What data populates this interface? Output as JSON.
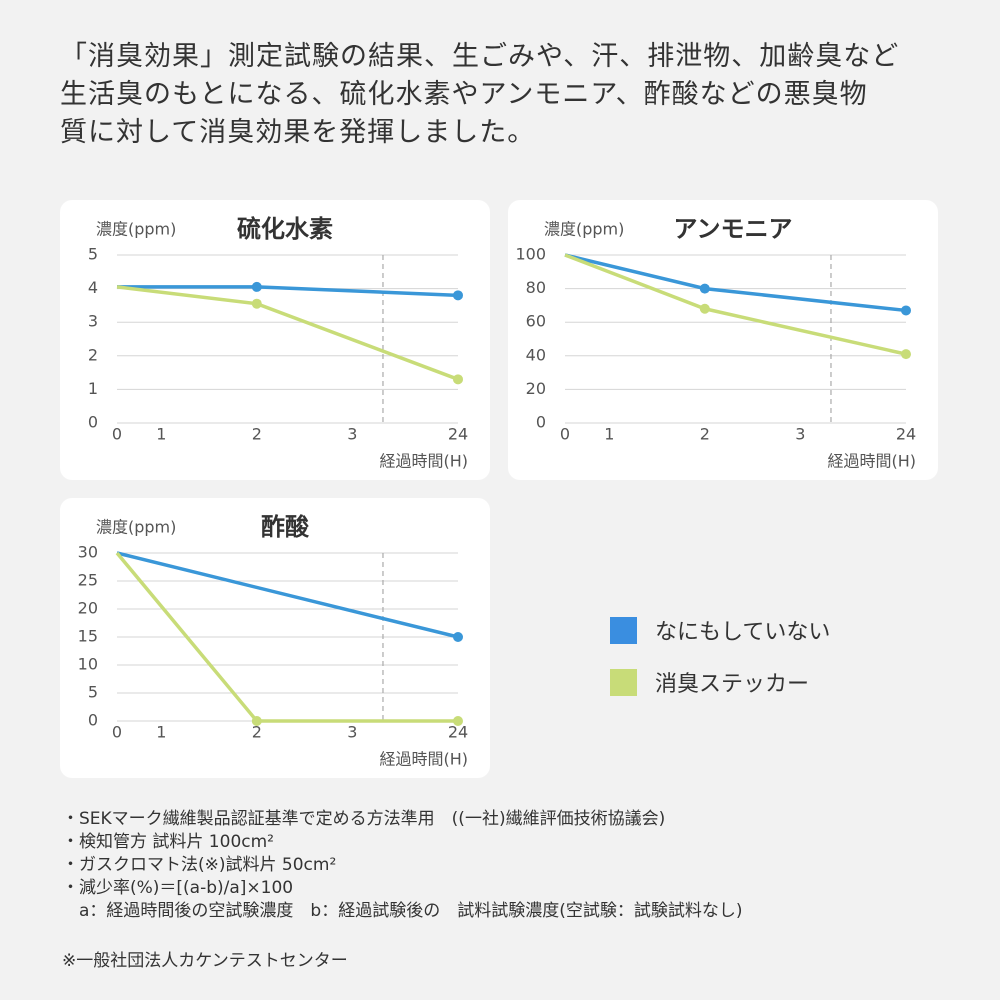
{
  "intro": [
    "「消臭効果」測定試験の結果、生ごみや、汗、排泄物、加齢臭など",
    "生活臭のもとになる、硫化水素やアンモニア、酢酸などの悪臭物",
    "質に対して消臭効果を発揮しました。"
  ],
  "chart_data": [
    {
      "type": "line",
      "title": "硫化水素",
      "y_label": "濃度(ppm)",
      "x_label": "経過時間(H)",
      "xticks": [
        0,
        1,
        2,
        3,
        24
      ],
      "ylim": [
        0,
        5
      ],
      "yticks": [
        0,
        1,
        2,
        3,
        4,
        5
      ],
      "grid": true,
      "series": [
        {
          "color": "#3a97d8",
          "x": [
            0,
            2,
            24
          ],
          "values": [
            4.05,
            4.05,
            3.8
          ]
        },
        {
          "color": "#c8dc78",
          "x": [
            0,
            2,
            24
          ],
          "values": [
            4.05,
            3.55,
            1.3
          ]
        }
      ]
    },
    {
      "type": "line",
      "title": "アンモニア",
      "y_label": "濃度(ppm)",
      "x_label": "経過時間(H)",
      "xticks": [
        0,
        1,
        2,
        3,
        24
      ],
      "ylim": [
        0,
        100
      ],
      "yticks": [
        0,
        20,
        40,
        60,
        80,
        100
      ],
      "grid": true,
      "series": [
        {
          "color": "#3a97d8",
          "x": [
            0,
            2,
            24
          ],
          "values": [
            100,
            80,
            67
          ]
        },
        {
          "color": "#c8dc78",
          "x": [
            0,
            2,
            24
          ],
          "values": [
            100,
            68,
            41
          ]
        }
      ]
    },
    {
      "type": "line",
      "title": "酢酸",
      "y_label": "濃度(ppm)",
      "x_label": "経過時間(H)",
      "xticks": [
        0,
        1,
        2,
        3,
        24
      ],
      "ylim": [
        0,
        30
      ],
      "yticks": [
        0,
        5,
        10,
        15,
        20,
        25,
        30
      ],
      "grid": true,
      "series": [
        {
          "color": "#3a97d8",
          "x": [
            0,
            24
          ],
          "values": [
            30,
            15
          ]
        },
        {
          "color": "#c8dc78",
          "x": [
            0,
            2,
            24
          ],
          "values": [
            30,
            0,
            0
          ]
        }
      ]
    }
  ],
  "legend": [
    {
      "name": "なにもしていない",
      "color": "#3a8ee0"
    },
    {
      "name": "消臭ステッカー",
      "color": "#c8dc78"
    }
  ],
  "notes": [
    "・SEKマーク繊維製品認証基準で定める方法準用　((一社)繊維評価技術協議会)",
    "・検知管方 試料片 100cm²",
    "・ガスクロマト法(※)試料片 50cm²",
    "・減少率(%)＝[(a-b)/a]×100",
    "　a：経過時間後の空試験濃度　b：経過試験後の　試料試験濃度(空試験：試験試料なし)"
  ],
  "footer": "※一般社団法人カケンテストセンター"
}
